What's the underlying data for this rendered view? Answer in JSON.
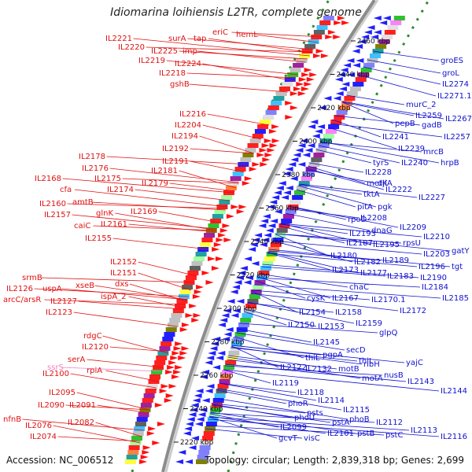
{
  "title": "Idiomarina loihiensis L2TR, complete genome",
  "footer": {
    "accession": "Accession: NC_006512",
    "summary": "Topology: circular; Length: 2,839,318 bp; Genes: 2,699"
  },
  "colors": {
    "left_labels": "#e01010",
    "left_pseudo": "#f080c0",
    "right_labels": "#1010d0",
    "backbone": "#8c8c8c",
    "dots": "#2e8b2e",
    "tick_text": "#111111"
  },
  "kbp_ticks": [
    "2220 kbp",
    "2240 kbp",
    "2260 kbp",
    "2280 kbp",
    "2300 kbp",
    "2320 kbp",
    "2340 kbp",
    "2360 kbp",
    "2380 kbp",
    "2400 kbp",
    "2420 kbp",
    "2440 kbp",
    "2460 kbp"
  ],
  "left_genes": [
    "eriC",
    "hemL",
    "surA",
    "tap",
    "IL2221",
    "IL2220",
    "IL2225",
    "imp",
    "IL2219",
    "IL2224",
    "IL2218",
    "gshB",
    "IL2216",
    "IL2204",
    "IL2194",
    "IL2192",
    "IL2178",
    "IL2191",
    "IL2176",
    "IL2181",
    "IL2175",
    "IL2179",
    "IL2174",
    "IL2168",
    "cfa",
    "IL2160",
    "amtB",
    "IL2169",
    "IL2157",
    "glnK",
    "caiC",
    "IL2161",
    "IL2155",
    "IL2152",
    "IL2151",
    "srmB",
    "IL2126",
    "uspA",
    "xseB",
    "dxs",
    "arcC/arsR",
    "IL2127",
    "ispA_2",
    "IL2123",
    "rdgC",
    "IL2120",
    "serA",
    "rpiA",
    "IL2100",
    "IL2095",
    "IL2090",
    "IL2091",
    "nfnB",
    "IL2082",
    "IL2076",
    "IL2074"
  ],
  "left_pseudo_genes": [
    "ssrS"
  ],
  "right_genes": [
    "groES",
    "groL",
    "IL2274",
    "IL2271.1",
    "murC_2",
    "IL2259",
    "IL2267",
    "pepB",
    "gadB",
    "IL2257",
    "IL2241",
    "IL2239",
    "mrcB",
    "tyrS",
    "IL2240",
    "hrpB",
    "IL2228",
    "djlA",
    "metK",
    "IL2222",
    "tktA",
    "IL2227",
    "pitA",
    "pgk",
    "IL2208",
    "rpoD",
    "dnaG",
    "IL2209",
    "IL2193",
    "IL2210",
    "IL2187",
    "IL2195",
    "rpsU",
    "IL2203",
    "gatY",
    "IL2180",
    "IL2189",
    "IL2196",
    "tgt",
    "IL2182",
    "IL2183",
    "IL2190",
    "IL2173",
    "IL2177",
    "IL2184",
    "chaC",
    "cysK",
    "IL2167",
    "IL2170.1",
    "IL2185",
    "IL2172",
    "IL2154",
    "IL2158",
    "IL2150",
    "IL2153",
    "IL2159",
    "glpQ",
    "IL2145",
    "secD",
    "thiL",
    "pgpA",
    "thiL",
    "yajC",
    "IL2122",
    "IL2132",
    "motB",
    "ribH",
    "motA",
    "nusB",
    "IL2119",
    "IL2143",
    "IL2144",
    "IL2118",
    "phoR",
    "IL2114",
    "IL2115",
    "psts",
    "phoU",
    "pstA",
    "phoB",
    "IL2112",
    "IL2099",
    "IL2101",
    "pstB",
    "pstC",
    "IL2113",
    "IL2116",
    "gcvT",
    "visC"
  ]
}
